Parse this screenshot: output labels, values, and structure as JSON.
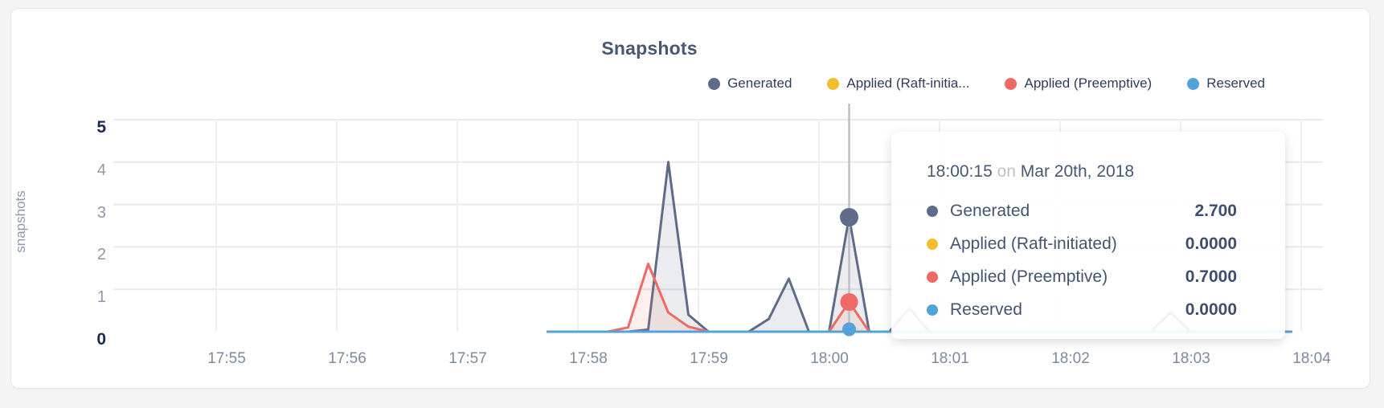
{
  "page": {
    "background": "#f4f4f5",
    "card_background": "#ffffff",
    "card_border": "#e5e5e8"
  },
  "chart": {
    "title": "Snapshots",
    "y_axis_label": "snapshots",
    "legend": [
      {
        "label": "Generated",
        "color": "#5f6c87"
      },
      {
        "label": "Applied (Raft-initia...",
        "color": "#f1bf2b"
      },
      {
        "label": "Applied (Preemptive)",
        "color": "#ef6a65"
      },
      {
        "label": "Reserved",
        "color": "#52a3d9"
      }
    ],
    "tooltip": {
      "time": "18:00:15",
      "on_word": "on",
      "date": "Mar 20th, 2018",
      "rows": [
        {
          "label": "Generated",
          "color": "#5f6c87",
          "value": "2.700"
        },
        {
          "label": "Applied (Raft-initiated)",
          "color": "#f1bf2b",
          "value": "0.0000"
        },
        {
          "label": "Applied (Preemptive)",
          "color": "#ef6a65",
          "value": "0.7000"
        },
        {
          "label": "Reserved",
          "color": "#52a3d9",
          "value": "0.0000"
        }
      ]
    }
  },
  "chart_data": {
    "type": "area",
    "title": "Snapshots",
    "xlabel": "",
    "ylabel": "snapshots",
    "x_ticks": [
      "17:55",
      "17:56",
      "17:57",
      "17:58",
      "17:59",
      "18:00",
      "18:01",
      "18:02",
      "18:03",
      "18:04"
    ],
    "y_ticks": [
      0,
      1,
      2,
      3,
      4,
      5
    ],
    "ylim": [
      0,
      5
    ],
    "grid": true,
    "legend_position": "top-right",
    "hover": {
      "time": "18:00:15",
      "date": "Mar 20th, 2018",
      "values": {
        "Generated": 2.7,
        "Applied (Raft-initiated)": 0.0,
        "Applied (Preemptive)": 0.7,
        "Reserved": 0.0
      }
    },
    "series": [
      {
        "name": "Generated",
        "color": "#5f6c87",
        "points": [
          [
            "17:57:45",
            0
          ],
          [
            "17:58:25",
            0
          ],
          [
            "17:58:35",
            0.05
          ],
          [
            "17:58:45",
            4.0
          ],
          [
            "17:58:55",
            0.4
          ],
          [
            "17:59:05",
            0
          ],
          [
            "17:59:25",
            0
          ],
          [
            "17:59:35",
            0.3
          ],
          [
            "17:59:45",
            1.25
          ],
          [
            "17:59:55",
            0
          ],
          [
            "18:00:05",
            0
          ],
          [
            "18:00:15",
            2.7
          ],
          [
            "18:00:25",
            0
          ],
          [
            "18:00:35",
            0
          ],
          [
            "18:00:45",
            0.55
          ],
          [
            "18:00:55",
            0
          ],
          [
            "18:02:45",
            0
          ],
          [
            "18:02:55",
            0.45
          ],
          [
            "18:03:05",
            0
          ],
          [
            "18:03:55",
            0
          ]
        ]
      },
      {
        "name": "Applied (Raft-initiated)",
        "color": "#f1bf2b",
        "points": [
          [
            "17:57:45",
            0
          ],
          [
            "18:03:55",
            0
          ]
        ]
      },
      {
        "name": "Applied (Preemptive)",
        "color": "#ef6a65",
        "points": [
          [
            "17:57:45",
            0
          ],
          [
            "17:58:15",
            0
          ],
          [
            "17:58:25",
            0.1
          ],
          [
            "17:58:35",
            1.6
          ],
          [
            "17:58:45",
            0.45
          ],
          [
            "17:58:55",
            0.12
          ],
          [
            "17:59:05",
            0
          ],
          [
            "18:00:05",
            0
          ],
          [
            "18:00:15",
            0.7
          ],
          [
            "18:00:25",
            0
          ],
          [
            "18:03:55",
            0
          ]
        ]
      },
      {
        "name": "Reserved",
        "color": "#52a3d9",
        "points": [
          [
            "17:57:45",
            0
          ],
          [
            "18:03:55",
            0
          ]
        ]
      }
    ]
  }
}
